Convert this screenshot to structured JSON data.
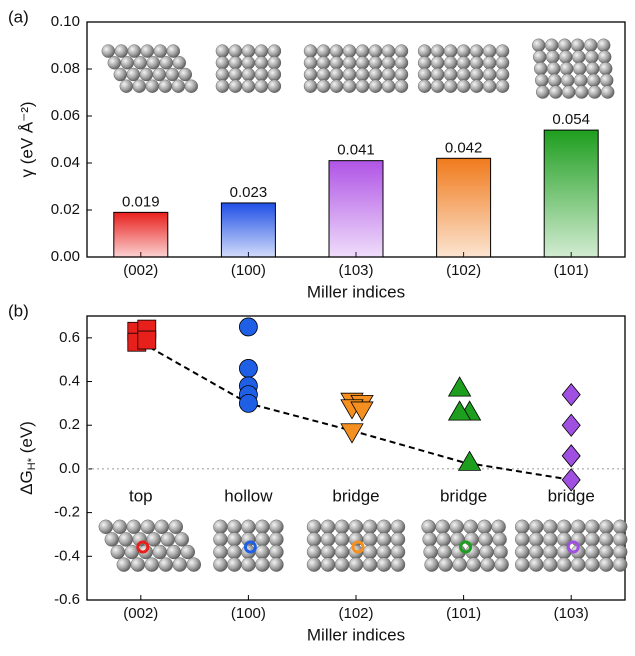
{
  "chart_data": [
    {
      "type": "bar",
      "panel_label": "(a)",
      "x_label": "Miller indices",
      "y_label": "γ (eV Å⁻²)",
      "categories": [
        "(002)",
        "(100)",
        "(103)",
        "(102)",
        "(101)"
      ],
      "values": [
        0.019,
        0.023,
        0.041,
        0.042,
        0.054
      ],
      "colors": [
        "#e8201c",
        "#1f4fe6",
        "#b054e6",
        "#f07a1c",
        "#1e9e1e"
      ],
      "ylim": [
        0,
        0.1
      ],
      "yticks": [
        {
          "value": 0,
          "label": "0.00"
        },
        0.02,
        0.04,
        0.06,
        0.08,
        {
          "value": 0.1,
          "label": "0.10"
        }
      ]
    },
    {
      "type": "scatter",
      "panel_label": "(b)",
      "x_label": "Miller indices",
      "y_label": {
        "main": "ΔG",
        "sub": "H*",
        "unit": " (eV)"
      },
      "categories": [
        "(002)",
        "(100)",
        "(102)",
        "(101)",
        "(103)"
      ],
      "series": [
        {
          "marker": "square",
          "color": "#e8201c",
          "values": [
            0.63,
            0.64,
            0.58,
            0.59
          ]
        },
        {
          "marker": "circle",
          "color": "#1f5fe6",
          "values": [
            0.65,
            0.46,
            0.38,
            0.34,
            0.3
          ]
        },
        {
          "marker": "triangle-down",
          "color": "#f59020",
          "values": [
            0.31,
            0.3,
            0.28,
            0.27,
            0.17
          ]
        },
        {
          "marker": "triangle-up",
          "color": "#1e9e1e",
          "values": [
            0.37,
            0.26,
            0.26,
            0.03
          ]
        },
        {
          "marker": "diamond",
          "color": "#a050e0",
          "values": [
            0.34,
            0.2,
            0.06,
            -0.05
          ]
        }
      ],
      "trend": [
        0.58,
        0.3,
        0.17,
        0.03,
        -0.05
      ],
      "reference_line": 0,
      "site_labels": [
        "top",
        "hollow",
        "bridge",
        "bridge",
        "bridge"
      ],
      "ylim": [
        -0.6,
        0.7
      ],
      "yticks": [
        -0.6,
        -0.4,
        -0.2,
        {
          "value": 0,
          "label": "0.0"
        },
        0.2,
        0.4,
        0.6
      ]
    }
  ]
}
